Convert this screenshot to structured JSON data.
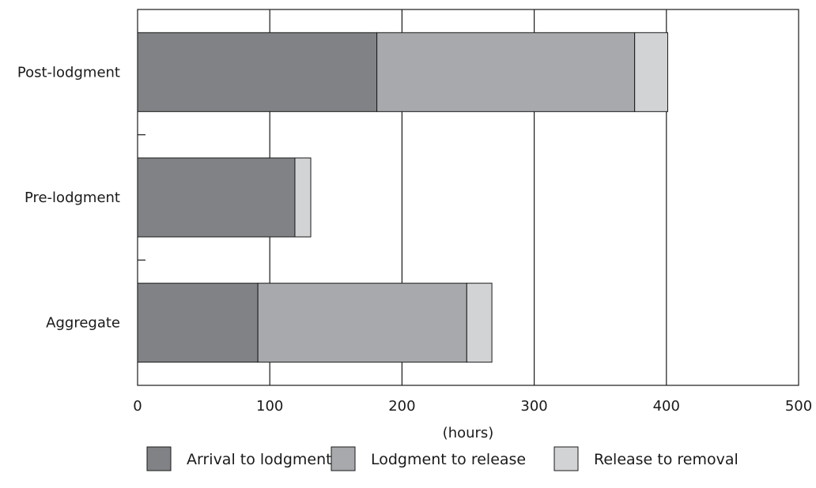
{
  "chart_data": {
    "type": "bar",
    "orientation": "horizontal",
    "stacked": true,
    "categories": [
      "Post-lodgment",
      "Pre-lodgment",
      "Aggregate"
    ],
    "series": [
      {
        "name": "Arrival to lodgment",
        "values": [
          181,
          119,
          91
        ],
        "color": "#808285"
      },
      {
        "name": "Lodgment to release",
        "values": [
          195,
          0,
          158
        ],
        "color": "#a7a9ac"
      },
      {
        "name": "Release to removal",
        "values": [
          25,
          12,
          19
        ],
        "color": "#d1d3d4"
      }
    ],
    "title": "",
    "xlabel": "(hours)",
    "ylabel": "",
    "xlim": [
      0,
      500
    ],
    "xticks": [
      0,
      100,
      200,
      300,
      400,
      500
    ],
    "grid": "vertical",
    "legend": "bottom"
  }
}
